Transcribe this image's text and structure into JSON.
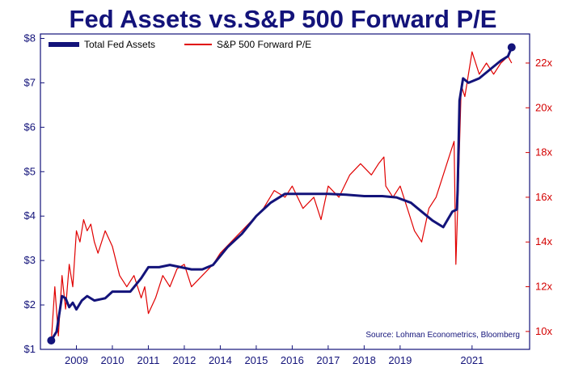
{
  "chart_data": {
    "type": "line",
    "title": "Fed Assets vs.S&P 500 Forward P/E",
    "source": "Source: Lohman Econometrics, Bloomberg",
    "legend_position": "top-left",
    "grid": false,
    "x_ticks": [
      "2009",
      "2010",
      "2011",
      "2012",
      "2014",
      "2015",
      "2016",
      "2017",
      "2018",
      "2019",
      "2021"
    ],
    "left_axis": {
      "ylim": [
        1,
        8.1
      ],
      "ticks": [
        "$1",
        "$2",
        "$3",
        "$4",
        "$5",
        "$6",
        "$7",
        "$8"
      ]
    },
    "right_axis": {
      "ylim": [
        9.2,
        23.3
      ],
      "ticks": [
        "10x",
        "12x",
        "14x",
        "16x",
        "18x",
        "20x",
        "22x"
      ]
    },
    "colors": {
      "fed": "#13137a",
      "pe": "#e00000",
      "axis_left": "#13137a",
      "axis_right": "#d40000"
    },
    "series": [
      {
        "name": "Total Fed Assets",
        "axis": "left",
        "x": [
          2008.3,
          2008.45,
          2008.6,
          2008.7,
          2008.8,
          2008.9,
          2009.0,
          2009.15,
          2009.3,
          2009.5,
          2009.8,
          2010.0,
          2010.2,
          2010.5,
          2010.8,
          2011.0,
          2011.3,
          2011.6,
          2011.9,
          2012.2,
          2012.5,
          2012.8,
          2013.2,
          2013.6,
          2014.0,
          2014.4,
          2014.8,
          2015.5,
          2016.0,
          2016.5,
          2017.0,
          2017.5,
          2017.9,
          2018.3,
          2018.6,
          2018.9,
          2019.2,
          2019.45,
          2019.58,
          2019.6,
          2019.65,
          2019.75,
          2019.9,
          2020.2,
          2020.5,
          2020.8,
          2021.0,
          2021.1
        ],
        "values": [
          1.2,
          1.4,
          2.2,
          2.15,
          1.95,
          2.05,
          1.9,
          2.1,
          2.2,
          2.1,
          2.15,
          2.3,
          2.3,
          2.3,
          2.6,
          2.85,
          2.85,
          2.9,
          2.85,
          2.8,
          2.8,
          2.9,
          3.3,
          3.6,
          4.0,
          4.3,
          4.5,
          4.5,
          4.5,
          4.48,
          4.45,
          4.45,
          4.42,
          4.3,
          4.1,
          3.9,
          3.75,
          4.1,
          4.15,
          4.6,
          6.6,
          7.1,
          7.0,
          7.1,
          7.3,
          7.5,
          7.6,
          7.8
        ]
      },
      {
        "name": "S&P 500 Forward P/E",
        "axis": "right",
        "x": [
          2008.3,
          2008.4,
          2008.5,
          2008.6,
          2008.7,
          2008.8,
          2008.9,
          2009.0,
          2009.1,
          2009.2,
          2009.3,
          2009.4,
          2009.5,
          2009.6,
          2009.8,
          2010.0,
          2010.2,
          2010.4,
          2010.6,
          2010.8,
          2010.9,
          2011.0,
          2011.2,
          2011.4,
          2011.6,
          2011.8,
          2012.0,
          2012.2,
          2012.5,
          2012.8,
          2013.0,
          2013.3,
          2013.6,
          2013.9,
          2014.2,
          2014.5,
          2014.8,
          2015.0,
          2015.3,
          2015.6,
          2015.8,
          2016.0,
          2016.3,
          2016.6,
          2016.9,
          2017.2,
          2017.4,
          2017.55,
          2017.6,
          2017.8,
          2018.0,
          2018.2,
          2018.4,
          2018.6,
          2018.8,
          2019.0,
          2019.2,
          2019.4,
          2019.5,
          2019.55,
          2019.6,
          2019.7,
          2019.8,
          2020.0,
          2020.2,
          2020.4,
          2020.6,
          2020.8,
          2021.0,
          2021.1
        ],
        "values": [
          9.5,
          12.0,
          9.8,
          12.5,
          11.0,
          13.0,
          12.0,
          14.5,
          14.0,
          15.0,
          14.5,
          14.8,
          14.0,
          13.5,
          14.5,
          13.8,
          12.5,
          12.0,
          12.5,
          11.5,
          12.0,
          10.8,
          11.5,
          12.5,
          12.0,
          12.8,
          13.0,
          12.0,
          12.5,
          13.0,
          13.5,
          14.0,
          14.5,
          15.0,
          15.5,
          16.3,
          16.0,
          16.5,
          15.5,
          16.0,
          15.0,
          16.5,
          16.0,
          17.0,
          17.5,
          17.0,
          17.5,
          17.8,
          16.5,
          16.0,
          16.5,
          15.5,
          14.5,
          14.0,
          15.5,
          16.0,
          17.0,
          18.0,
          18.5,
          13.0,
          15.5,
          21.0,
          20.5,
          22.5,
          21.5,
          22.0,
          21.5,
          22.0,
          22.3,
          22.0
        ]
      }
    ]
  }
}
